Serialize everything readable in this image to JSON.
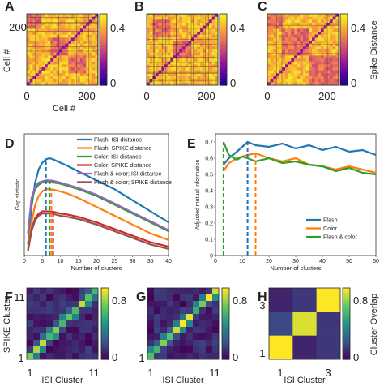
{
  "colors": {
    "flash_isi": "#1f77b4",
    "flash_spike": "#ff7f0e",
    "color_isi": "#2ca02c",
    "color_spike": "#d62728",
    "flash_color_isi": "#9467bd",
    "flash_color_spike": "#8c564b",
    "colormap_dist": [
      "#0d0887",
      "#5b02a3",
      "#9a179b",
      "#cb4678",
      "#eb7852",
      "#fbb32f",
      "#f0f921"
    ],
    "colormap_overlap": [
      "#440154",
      "#3b528b",
      "#21918c",
      "#5ec962",
      "#fde725"
    ]
  },
  "chart_data": [
    {
      "panel": "A",
      "type": "heatmap",
      "xlabel": "Cell #",
      "ylabel": "Cell #",
      "xticks": [
        "0",
        "200"
      ],
      "yticks": [
        "200"
      ],
      "colorbar_ticks": [
        "0.4",
        "0"
      ],
      "colorbar_label": "",
      "colormap": "plasma"
    },
    {
      "panel": "B",
      "type": "heatmap",
      "xticks": [
        "0",
        "200"
      ],
      "colorbar_ticks": [
        "0.4",
        "0"
      ],
      "colormap": "plasma"
    },
    {
      "panel": "C",
      "type": "heatmap",
      "xticks": [
        "0",
        "200"
      ],
      "colorbar_ticks": [
        "0.4",
        "0"
      ],
      "colorbar_label": "Spike Distance",
      "colormap": "plasma"
    },
    {
      "panel": "D",
      "type": "line",
      "xlabel": "Number of clusters",
      "ylabel": "Gap statistic",
      "xlim": [
        0,
        40
      ],
      "ylim": [
        0,
        0.55
      ],
      "xticks": [
        "0",
        "5",
        "10",
        "15",
        "20",
        "25",
        "30",
        "35",
        "40"
      ],
      "x": [
        1,
        2,
        3,
        4,
        5,
        6,
        7,
        8,
        10,
        12,
        15,
        20,
        25,
        30,
        35,
        40
      ],
      "series": [
        {
          "name": "Flash; ISI distance",
          "color": "#1f77b4",
          "values": [
            0.05,
            0.22,
            0.33,
            0.39,
            0.42,
            0.435,
            0.44,
            0.435,
            0.42,
            0.405,
            0.38,
            0.34,
            0.3,
            0.25,
            0.2,
            0.15
          ]
        },
        {
          "name": "Flash; SPIKE distance",
          "color": "#ff7f0e",
          "values": [
            0.03,
            0.15,
            0.23,
            0.27,
            0.29,
            0.3,
            0.3,
            0.298,
            0.29,
            0.28,
            0.26,
            0.22,
            0.18,
            0.14,
            0.1,
            0.07
          ]
        },
        {
          "name": "Color; ISI distance",
          "color": "#2ca02c",
          "values": [
            0.1,
            0.25,
            0.3,
            0.32,
            0.33,
            0.335,
            0.335,
            0.33,
            0.325,
            0.315,
            0.3,
            0.27,
            0.23,
            0.19,
            0.15,
            0.11
          ]
        },
        {
          "name": "Color; SPIKE distance",
          "color": "#d62728",
          "values": [
            0.02,
            0.12,
            0.17,
            0.19,
            0.2,
            0.2,
            0.2,
            0.198,
            0.19,
            0.185,
            0.175,
            0.15,
            0.12,
            0.09,
            0.06,
            0.04
          ]
        },
        {
          "name": "Flash & color; ISI distance",
          "color": "#9467bd",
          "values": [
            0.1,
            0.26,
            0.31,
            0.33,
            0.335,
            0.34,
            0.34,
            0.338,
            0.33,
            0.32,
            0.305,
            0.275,
            0.235,
            0.195,
            0.155,
            0.115
          ]
        },
        {
          "name": "Flash & color; SPIKE distance",
          "color": "#8c564b",
          "values": [
            0.02,
            0.11,
            0.16,
            0.18,
            0.19,
            0.19,
            0.19,
            0.188,
            0.18,
            0.175,
            0.165,
            0.14,
            0.11,
            0.08,
            0.05,
            0.03
          ]
        }
      ],
      "dashed_markers": [
        {
          "x": 6,
          "color": "#1f77b4"
        },
        {
          "x": 7,
          "color": "#2ca02c"
        },
        {
          "x": 7.5,
          "color": "#ff7f0e"
        },
        {
          "x": 8,
          "color": "#d62728"
        }
      ]
    },
    {
      "panel": "E",
      "type": "line",
      "xlabel": "Number of clusters",
      "ylabel": "Adjusted mutual information",
      "xlim": [
        0,
        60
      ],
      "ylim": [
        0,
        0.75
      ],
      "xticks": [
        "0",
        "10",
        "20",
        "30",
        "40",
        "50",
        "60"
      ],
      "yticks": [
        "0",
        "0.1",
        "0.2",
        "0.3",
        "0.4",
        "0.5",
        "0.6",
        "0.7"
      ],
      "x": [
        3,
        5,
        8,
        10,
        12,
        15,
        20,
        25,
        30,
        35,
        40,
        45,
        50,
        55,
        60
      ],
      "series": [
        {
          "name": "Flash",
          "color": "#1f77b4",
          "values": [
            0.56,
            0.6,
            0.64,
            0.67,
            0.7,
            0.68,
            0.67,
            0.69,
            0.66,
            0.68,
            0.65,
            0.67,
            0.64,
            0.65,
            0.62
          ]
        },
        {
          "name": "Color",
          "color": "#ff7f0e",
          "values": [
            0.52,
            0.57,
            0.6,
            0.61,
            0.62,
            0.63,
            0.6,
            0.58,
            0.6,
            0.56,
            0.55,
            0.53,
            0.55,
            0.53,
            0.51
          ]
        },
        {
          "name": "Flash & color",
          "color": "#2ca02c",
          "values": [
            0.7,
            0.62,
            0.59,
            0.61,
            0.6,
            0.58,
            0.6,
            0.57,
            0.58,
            0.56,
            0.55,
            0.52,
            0.54,
            0.51,
            0.5
          ]
        }
      ],
      "dashed_markers": [
        {
          "x": 3,
          "color": "#2ca02c"
        },
        {
          "x": 12,
          "color": "#1f77b4"
        },
        {
          "x": 15,
          "color": "#ff7f0e"
        }
      ]
    },
    {
      "panel": "F",
      "type": "heatmap",
      "xlabel": "ISI Cluster",
      "ylabel": "SPIKE Cluster",
      "xticks": [
        "1",
        "11"
      ],
      "yticks": [
        "11",
        "1"
      ],
      "colorbar_ticks": [
        "0.8",
        "0"
      ],
      "colormap": "viridis",
      "n": 11
    },
    {
      "panel": "G",
      "type": "heatmap",
      "xlabel": "ISI Cluster",
      "xticks": [
        "1",
        "11"
      ],
      "yticks": [
        "1"
      ],
      "colorbar_ticks": [
        "0.8",
        "0"
      ],
      "colormap": "viridis",
      "n": 11
    },
    {
      "panel": "H",
      "type": "heatmap",
      "xlabel": "ISI Cluster",
      "xticks": [
        "1",
        "3"
      ],
      "yticks": [
        "3",
        "1"
      ],
      "colorbar_ticks": [
        "0.8",
        "0"
      ],
      "colorbar_label": "Cluster Overlap",
      "colormap": "viridis",
      "n": 3,
      "values": [
        [
          0.1,
          0.15,
          0.9
        ],
        [
          0.2,
          0.85,
          0.15
        ],
        [
          0.95,
          0.1,
          0.15
        ]
      ]
    }
  ]
}
